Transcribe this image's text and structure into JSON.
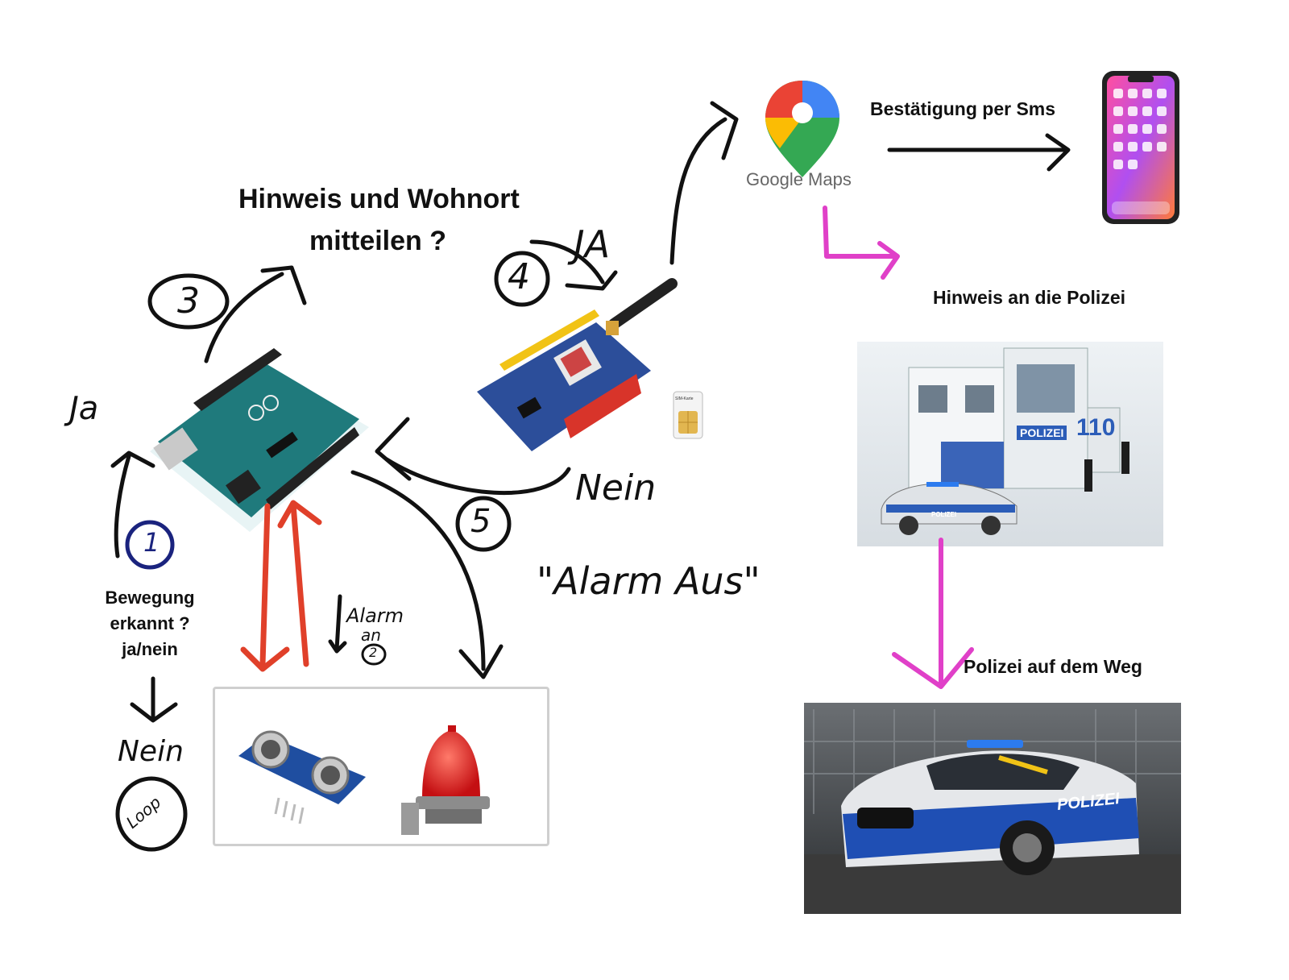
{
  "labels": {
    "hinweis_wohnort_line1": "Hinweis und Wohnort",
    "hinweis_wohnort_line2": "mitteilen ?",
    "bestaetigung": "Bestätigung per Sms",
    "hinweis_polizei": "Hinweis an die Polizei",
    "polizei_weg": "Polizei auf dem Weg",
    "bewegung_line1": "Bewegung",
    "bewegung_line2": "erkannt ?",
    "bewegung_line3": "ja/nein",
    "google_maps": "Google Maps",
    "sim_karte": "SIM-Karte",
    "polizei_station_sign": "POLIZEI",
    "station_number": "110",
    "car_polizei": "POLIZEI",
    "police_car_door": "POLIZEI"
  },
  "handwriting": {
    "ja_left": "Ja",
    "ja_top": "JA",
    "nein_right": "Nein",
    "nein_left": "Nein",
    "loop": "Loop",
    "alarm_aus": "\"Alarm Aus\"",
    "alarm_an_line1": "Alarm",
    "alarm_an_line2": "an",
    "step_1": "1",
    "step_2": "2",
    "step_3": "3",
    "step_4": "4",
    "step_5": "5"
  },
  "colors": {
    "arrow_black": "#111111",
    "arrow_red": "#e0402a",
    "arrow_magenta": "#e040c8",
    "step_1_color": "#1a237e"
  },
  "icons": [
    "arduino-board-icon",
    "gsm-shield-icon",
    "sim-card-icon",
    "google-maps-pin-icon",
    "smartphone-icon",
    "police-station-icon",
    "police-car-icon",
    "ultrasonic-sensor-icon",
    "alarm-siren-icon"
  ]
}
